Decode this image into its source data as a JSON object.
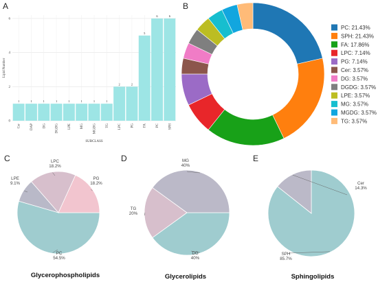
{
  "panels": {
    "a": {
      "letter": "A"
    },
    "b": {
      "letter": "B"
    },
    "c": {
      "letter": "C",
      "caption": "Glycerophospholipids"
    },
    "d": {
      "letter": "D",
      "caption": "Glycerolipids"
    },
    "e": {
      "letter": "E",
      "caption": "Sphingolipids"
    }
  },
  "chart_data": [
    {
      "id": "A",
      "type": "bar",
      "categories": [
        "Cer",
        "DAP",
        "DG",
        "DGDG",
        "LPE",
        "MG",
        "MGDG",
        "TG",
        "LPC",
        "PG",
        "FA",
        "PC",
        "SPH"
      ],
      "values": [
        1,
        1,
        1,
        1,
        1,
        1,
        1,
        1,
        2,
        2,
        5,
        6,
        6
      ],
      "xlabel": "SUBCLASS",
      "ylabel": "Lipid Number",
      "ylim": [
        0,
        6.2
      ],
      "yticks": [
        0,
        2,
        4,
        6
      ],
      "bar_color": "#9de5e5",
      "grid": true
    },
    {
      "id": "B",
      "type": "pie",
      "style": "donut",
      "legend_position": "right",
      "slices": [
        {
          "label": "PC",
          "value": 21.43,
          "legend": "PC: 21.43%",
          "color": "#1f77b4"
        },
        {
          "label": "SPH",
          "value": 21.43,
          "legend": "SPH: 21.43%",
          "color": "#ff7f0e"
        },
        {
          "label": "FA",
          "value": 17.86,
          "legend": "FA: 17.86%",
          "color": "#18a118"
        },
        {
          "label": "LPC",
          "value": 7.14,
          "legend": "LPC: 7.14%",
          "color": "#e8262a"
        },
        {
          "label": "PG",
          "value": 7.14,
          "legend": "PG: 7.14%",
          "color": "#9b6bc6"
        },
        {
          "label": "Cer",
          "value": 3.57,
          "legend": "Cer: 3.57%",
          "color": "#8c564b"
        },
        {
          "label": "DG",
          "value": 3.57,
          "legend": "DG: 3.57%",
          "color": "#f07cc6"
        },
        {
          "label": "DGDG",
          "value": 3.57,
          "legend": "DGDG: 3.57%",
          "color": "#7f7f7f"
        },
        {
          "label": "LPE",
          "value": 3.57,
          "legend": "LPE: 3.57%",
          "color": "#bcbd22"
        },
        {
          "label": "MG",
          "value": 3.57,
          "legend": "MG: 3.57%",
          "color": "#17becf"
        },
        {
          "label": "MGDG",
          "value": 3.57,
          "legend": "MGDG: 3.57%",
          "color": "#12a6df"
        },
        {
          "label": "TG",
          "value": 3.57,
          "legend": "TG: 3.57%",
          "color": "#ffbb78"
        }
      ]
    },
    {
      "id": "C",
      "type": "pie",
      "title": "Glycerophospholipids",
      "slices": [
        {
          "label": "PC",
          "value": 54.5,
          "text": "54.5%",
          "color": "#9fcccf"
        },
        {
          "label": "LPE",
          "value": 9.1,
          "text": "9.1%",
          "color": "#b9b9c8"
        },
        {
          "label": "LPC",
          "value": 18.2,
          "text": "18.2%",
          "color": "#d7bfcc"
        },
        {
          "label": "PG",
          "value": 18.2,
          "text": "18.2%",
          "color": "#f2c5cf"
        }
      ]
    },
    {
      "id": "D",
      "type": "pie",
      "title": "Glycerolipids",
      "slices": [
        {
          "label": "DG",
          "value": 40,
          "text": "40%",
          "color": "#9fcccf"
        },
        {
          "label": "TG",
          "value": 20,
          "text": "20%",
          "color": "#d7bfcc"
        },
        {
          "label": "MG",
          "value": 40,
          "text": "40%",
          "color": "#bbb9c8"
        }
      ]
    },
    {
      "id": "E",
      "type": "pie",
      "title": "Sphingolipids",
      "slices": [
        {
          "label": "SPH",
          "value": 85.7,
          "text": "85.7%",
          "color": "#9fcccf"
        },
        {
          "label": "Cer",
          "value": 14.3,
          "text": "14.3%",
          "color": "#bbb9c8"
        }
      ]
    }
  ]
}
